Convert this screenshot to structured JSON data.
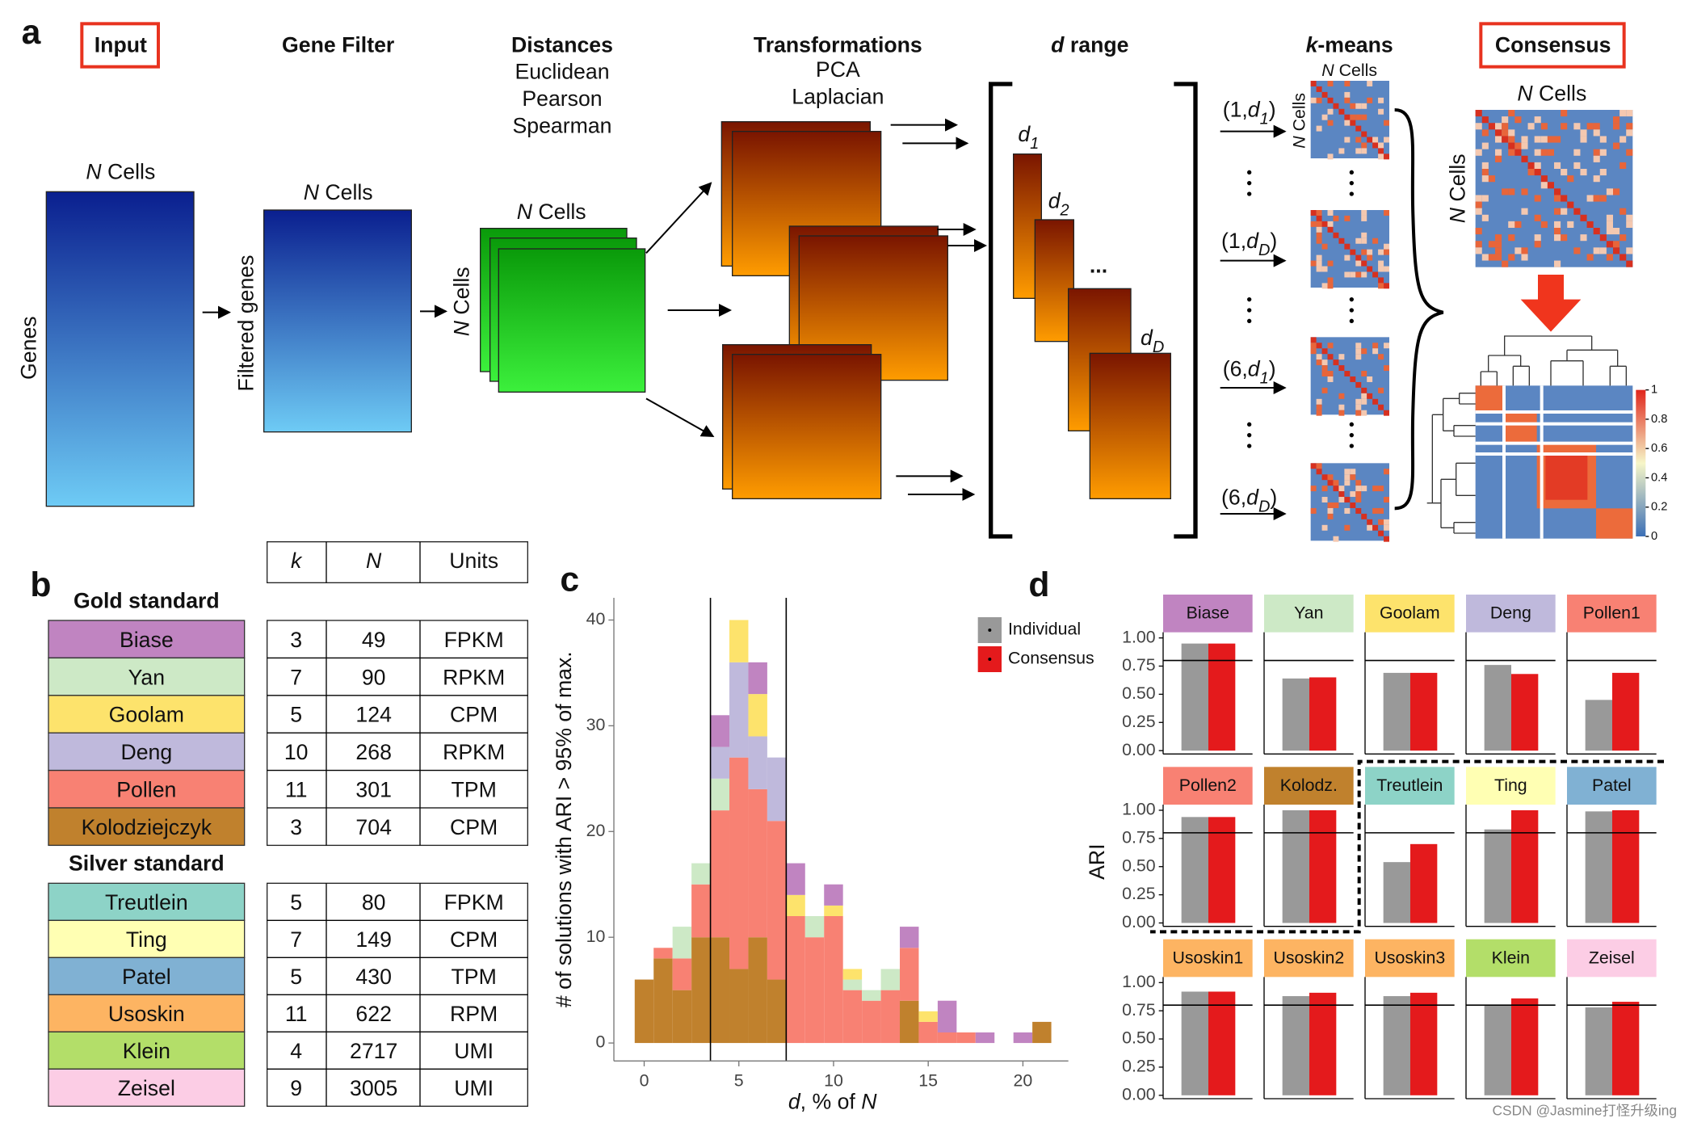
{
  "panel_labels": [
    "a",
    "b",
    "c",
    "d"
  ],
  "panel_a": {
    "steps": {
      "input": "Input",
      "gene_filter": "Gene Filter",
      "distances": "Distances",
      "transformations": "Transformations",
      "d_range": [
        "d",
        " range"
      ],
      "kmeans": [
        "k",
        "-means"
      ],
      "consensus": "Consensus"
    },
    "distances": [
      "Euclidean",
      "Pearson",
      "Spearman"
    ],
    "transformations": [
      "PCA",
      "Laplacian"
    ],
    "n_cells": {
      "n": "N",
      "rest": " Cells"
    },
    "genes": "Genes",
    "filtered_genes": "Filtered genes",
    "d_labels": [
      {
        "d": "d",
        "sub": "1"
      },
      {
        "d": "d",
        "sub": "2"
      },
      {
        "d": "d",
        "sub": "D"
      }
    ],
    "d_ellipsis": "...",
    "kmeans_labels": [
      {
        "pre": "(1,",
        "d": "d",
        "sub": "1",
        "post": ")"
      },
      {
        "pre": "(1,",
        "d": "d",
        "sub": "D",
        "post": ")"
      },
      {
        "pre": "(6,",
        "d": "d",
        "sub": "1",
        "post": ")"
      },
      {
        "pre": "(6,",
        "d": "d",
        "sub": "D",
        "post": ")"
      }
    ],
    "colorbar_ticks": [
      1,
      0.8,
      0.6,
      0.4,
      0.2,
      0
    ]
  },
  "table": {
    "header": [
      "k",
      "N",
      "Units"
    ],
    "groups": [
      {
        "title": "Gold standard",
        "rows": [
          {
            "name": "Biase",
            "color": "#c084c1",
            "k": 3,
            "N": 49,
            "units": "FPKM"
          },
          {
            "name": "Yan",
            "color": "#cde9c6",
            "k": 7,
            "N": 90,
            "units": "RPKM"
          },
          {
            "name": "Goolam",
            "color": "#fde36c",
            "k": 5,
            "N": 124,
            "units": "CPM"
          },
          {
            "name": "Deng",
            "color": "#bfb9dc",
            "k": 10,
            "N": 268,
            "units": "RPKM"
          },
          {
            "name": "Pollen",
            "color": "#f88173",
            "k": 11,
            "N": 301,
            "units": "TPM"
          },
          {
            "name": "Kolodziejczyk",
            "color": "#c0812d",
            "k": 3,
            "N": 704,
            "units": "CPM"
          }
        ]
      },
      {
        "title": "Silver standard",
        "rows": [
          {
            "name": "Treutlein",
            "color": "#8dd3c7",
            "k": 5,
            "N": 80,
            "units": "FPKM"
          },
          {
            "name": "Ting",
            "color": "#ffffb3",
            "k": 7,
            "N": 149,
            "units": "CPM"
          },
          {
            "name": "Patel",
            "color": "#80b1d3",
            "k": 5,
            "N": 430,
            "units": "TPM"
          },
          {
            "name": "Usoskin",
            "color": "#fdb462",
            "k": 11,
            "N": 622,
            "units": "RPM"
          },
          {
            "name": "Klein",
            "color": "#b3de69",
            "k": 4,
            "N": 2717,
            "units": "UMI"
          },
          {
            "name": "Zeisel",
            "color": "#fccde5",
            "k": 9,
            "N": 3005,
            "units": "UMI"
          }
        ]
      }
    ]
  },
  "chart_data": [
    {
      "type": "histogram",
      "x_label": [
        "d",
        ", % of ",
        "N"
      ],
      "y_label": "# of solutions with ARI > 95% of max.",
      "bins": [
        -0.5,
        0.5,
        1.5,
        2.5,
        3.5,
        4.5,
        5.5,
        6.5,
        7.5,
        8.5,
        9.5,
        10.5,
        11.5,
        12.5,
        13.5,
        14.5,
        15.5,
        16.5,
        17.5,
        18.5,
        19.5,
        20.5,
        21.5
      ],
      "series": [
        {
          "name": "Kolodziejczyk",
          "color": "#c0812d",
          "values": [
            6,
            8,
            5,
            10,
            10,
            7,
            10,
            6,
            0,
            0,
            0,
            0,
            0,
            0,
            4,
            0,
            0,
            0,
            0,
            0,
            0,
            2
          ]
        },
        {
          "name": "Pollen",
          "color": "#f88173",
          "values": [
            0,
            1,
            3,
            5,
            12,
            20,
            14,
            15,
            12,
            10,
            12,
            5,
            4,
            5,
            5,
            2,
            1,
            1,
            0,
            0,
            0,
            0
          ]
        },
        {
          "name": "Yan",
          "color": "#cde9c6",
          "values": [
            0,
            0,
            3,
            2,
            3,
            0,
            0,
            0,
            0,
            2,
            0,
            1,
            1,
            2,
            0,
            0,
            0,
            0,
            0,
            0,
            0,
            0
          ]
        },
        {
          "name": "Deng",
          "color": "#bfb9dc",
          "values": [
            0,
            0,
            0,
            0,
            3,
            9,
            5,
            6,
            0,
            0,
            0,
            0,
            0,
            0,
            0,
            0,
            0,
            0,
            0,
            0,
            0,
            0
          ]
        },
        {
          "name": "Goolam",
          "color": "#fde36c",
          "values": [
            0,
            0,
            0,
            0,
            0,
            4,
            4,
            0,
            2,
            0,
            1,
            1,
            0,
            0,
            0,
            1,
            0,
            0,
            0,
            0,
            0,
            0
          ]
        },
        {
          "name": "Biase",
          "color": "#c084c1",
          "values": [
            0,
            0,
            0,
            0,
            3,
            0,
            3,
            0,
            3,
            0,
            2,
            0,
            0,
            0,
            2,
            0,
            3,
            0,
            1,
            0,
            1,
            0
          ]
        }
      ],
      "xlim": [
        -1.6,
        22.4
      ],
      "ylim": [
        -1.7,
        42.1
      ],
      "xticks": [
        0,
        5,
        10,
        15,
        20
      ],
      "yticks": [
        0,
        10,
        20,
        30,
        40
      ],
      "vlines": [
        3.5,
        7.5
      ]
    },
    {
      "type": "bar",
      "y_label": "ARI",
      "categories": [
        "Biase",
        "Yan",
        "Goolam",
        "Deng",
        "Pollen1",
        "Pollen2",
        "Kolodz.",
        "Treutlein",
        "Ting",
        "Patel",
        "Usoskin1",
        "Usoskin2",
        "Usoskin3",
        "Klein",
        "Zeisel"
      ],
      "category_colors": [
        "#c084c1",
        "#cde9c6",
        "#fde36c",
        "#bfb9dc",
        "#f88173",
        "#f88173",
        "#c0812d",
        "#8dd3c7",
        "#ffffb3",
        "#80b1d3",
        "#fdb462",
        "#fdb462",
        "#fdb462",
        "#b3de69",
        "#fccde5"
      ],
      "series": [
        {
          "name": "Individual",
          "color": "#999999",
          "values": [
            0.95,
            0.64,
            0.69,
            0.76,
            0.45,
            0.94,
            1,
            0.54,
            0.83,
            0.99,
            0.92,
            0.88,
            0.88,
            0.8,
            0.78
          ]
        },
        {
          "name": "Consensus",
          "color": "#e41a1c",
          "values": [
            0.95,
            0.65,
            0.69,
            0.68,
            0.69,
            0.94,
            1,
            0.7,
            1,
            1,
            0.92,
            0.91,
            0.91,
            0.86,
            0.83
          ]
        }
      ],
      "ylim": [
        -0.03,
        1.05
      ],
      "yticks": [
        {
          "value": 0,
          "label": "0.00"
        },
        0.25,
        {
          "value": 0.5,
          "label": "0.50"
        },
        0.75,
        {
          "value": 1,
          "label": "1.00"
        }
      ],
      "hline": 0.8
    }
  ],
  "watermark": "CSDN @Jasmine打怪升级ing"
}
